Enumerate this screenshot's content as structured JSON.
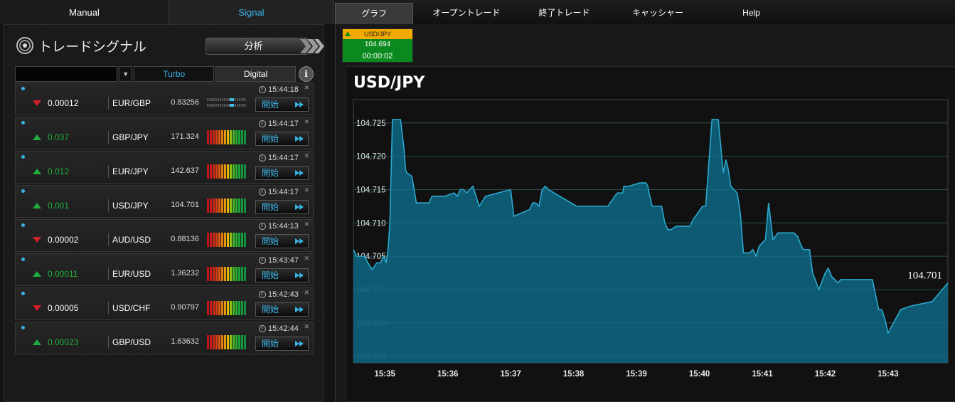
{
  "left_tabs": [
    "Manual",
    "Signal"
  ],
  "right_tabs": [
    "グラフ",
    "オープントレード",
    "終了トレード",
    "キャッシャー",
    "Help"
  ],
  "panel": {
    "title": "トレードシグナル",
    "analyze_label": "分析",
    "filter_tabs": [
      "Turbo",
      "Digital"
    ],
    "info_label": "i"
  },
  "signals": [
    {
      "time": "15:44:18",
      "direction": "down",
      "amount": "0.00012",
      "pair": "EUR/GBP",
      "price": "0.83256",
      "meter": "turbo",
      "start": "開始"
    },
    {
      "time": "15:44:17",
      "direction": "up",
      "amount": "0.037",
      "pair": "GBP/JPY",
      "price": "171.324",
      "meter": "strength",
      "start": "開始"
    },
    {
      "time": "15:44:17",
      "direction": "up",
      "amount": "0.012",
      "pair": "EUR/JPY",
      "price": "142.637",
      "meter": "strength",
      "start": "開始"
    },
    {
      "time": "15:44:17",
      "direction": "up",
      "amount": "0.001",
      "pair": "USD/JPY",
      "price": "104.701",
      "meter": "strength",
      "start": "開始"
    },
    {
      "time": "15:44:13",
      "direction": "down",
      "amount": "0.00002",
      "pair": "AUD/USD",
      "price": "0.88136",
      "meter": "strength",
      "start": "開始"
    },
    {
      "time": "15:43:47",
      "direction": "up",
      "amount": "0.00011",
      "pair": "EUR/USD",
      "price": "1.36232",
      "meter": "strength",
      "start": "開始"
    },
    {
      "time": "15:42:43",
      "direction": "down",
      "amount": "0.00005",
      "pair": "USD/CHF",
      "price": "0.90797",
      "meter": "strength",
      "start": "開始"
    },
    {
      "time": "15:42:44",
      "direction": "up",
      "amount": "0.00023",
      "pair": "GBP/USD",
      "price": "1.63632",
      "meter": "strength",
      "start": "開始"
    }
  ],
  "mini_ticker": {
    "pair": "USD/JPY",
    "price": "104.694",
    "timer": "00:00:02",
    "direction": "up"
  },
  "colors": {
    "accent": "#39b4e6",
    "up": "#1fae3c",
    "down": "#d0202a",
    "ticker_head": "#f2a900",
    "ticker_body": "#0a8a1e"
  },
  "chart_data": {
    "type": "area",
    "title": "USD/JPY",
    "last_value_label": "104.701",
    "y_ticks": [
      "104.725",
      "104.720",
      "104.715",
      "104.710",
      "104.705",
      "104.700",
      "104.695",
      "104.690"
    ],
    "x_ticks": [
      "15:35",
      "15:36",
      "15:37",
      "15:38",
      "15:39",
      "15:40",
      "15:41",
      "15:42",
      "15:43"
    ],
    "ylim": [
      104.689,
      104.7285
    ],
    "xlim": [
      34.5,
      43.95
    ],
    "grid": true,
    "color": "#2aa9cf",
    "x": [
      34.5,
      34.55,
      34.68,
      34.73,
      34.8,
      34.87,
      34.93,
      34.98,
      35.02,
      35.05,
      35.08,
      35.12,
      35.25,
      35.3,
      35.33,
      35.35,
      35.43,
      35.5,
      35.7,
      35.75,
      35.8,
      35.83,
      35.92,
      35.95,
      36.1,
      36.15,
      36.2,
      36.23,
      36.25,
      36.3,
      36.4,
      36.5,
      36.6,
      37.0,
      37.05,
      37.3,
      37.35,
      37.4,
      37.45,
      37.5,
      37.55,
      37.6,
      38.05,
      38.55,
      38.58,
      38.62,
      38.65,
      38.7,
      38.75,
      38.78,
      38.8,
      38.82,
      38.85,
      38.88,
      39.05,
      39.15,
      39.18,
      39.2,
      39.25,
      39.3,
      39.4,
      39.45,
      39.5,
      39.55,
      39.63,
      39.7,
      39.75,
      39.85,
      39.9,
      40.05,
      40.1,
      40.2,
      40.3,
      40.38,
      40.42,
      40.45,
      40.5,
      40.6,
      40.65,
      40.7,
      40.75,
      40.8,
      40.85,
      40.9,
      40.95,
      41.05,
      41.1,
      41.17,
      41.25,
      41.5,
      41.56,
      41.6,
      41.65,
      41.75,
      41.8,
      41.9,
      42.0,
      42.05,
      42.1,
      42.2,
      42.25,
      42.3,
      42.35,
      42.45,
      42.75,
      42.85,
      42.88,
      42.9,
      42.95,
      43.0,
      43.2,
      43.35,
      43.5,
      43.7,
      43.95
    ],
    "y": [
      104.706,
      104.705,
      104.705,
      104.704,
      104.703,
      104.704,
      104.704,
      104.705,
      104.704,
      104.706,
      104.71,
      104.7255,
      104.7255,
      104.7215,
      104.718,
      104.7175,
      104.717,
      104.713,
      104.713,
      104.714,
      104.714,
      104.714,
      104.714,
      104.714,
      104.7145,
      104.714,
      104.715,
      104.715,
      104.715,
      104.7145,
      104.7155,
      104.7125,
      104.714,
      104.715,
      104.711,
      104.712,
      104.713,
      104.713,
      104.7125,
      104.715,
      104.7155,
      104.715,
      104.7125,
      104.7125,
      104.713,
      104.7135,
      104.714,
      104.7145,
      104.7145,
      104.7145,
      104.7155,
      104.7155,
      104.7155,
      104.7155,
      104.716,
      104.716,
      104.7155,
      104.7145,
      104.7125,
      104.7125,
      104.7125,
      104.71,
      104.709,
      104.709,
      104.7095,
      104.7095,
      104.7095,
      104.7095,
      104.7105,
      104.7125,
      104.7125,
      104.7255,
      104.7255,
      104.7175,
      104.7195,
      104.7185,
      104.7155,
      104.7145,
      104.7115,
      104.7055,
      104.7055,
      104.7055,
      104.706,
      104.705,
      104.7065,
      104.7075,
      104.713,
      104.7075,
      104.7085,
      104.7085,
      104.708,
      104.707,
      104.706,
      104.706,
      104.7025,
      104.7,
      104.7025,
      104.7032,
      104.702,
      104.701,
      104.7015,
      104.7015,
      104.7015,
      104.7015,
      104.7015,
      104.697,
      104.697,
      104.697,
      104.6955,
      104.6935,
      104.697,
      104.6975,
      104.6978,
      104.6982,
      104.701
    ]
  }
}
